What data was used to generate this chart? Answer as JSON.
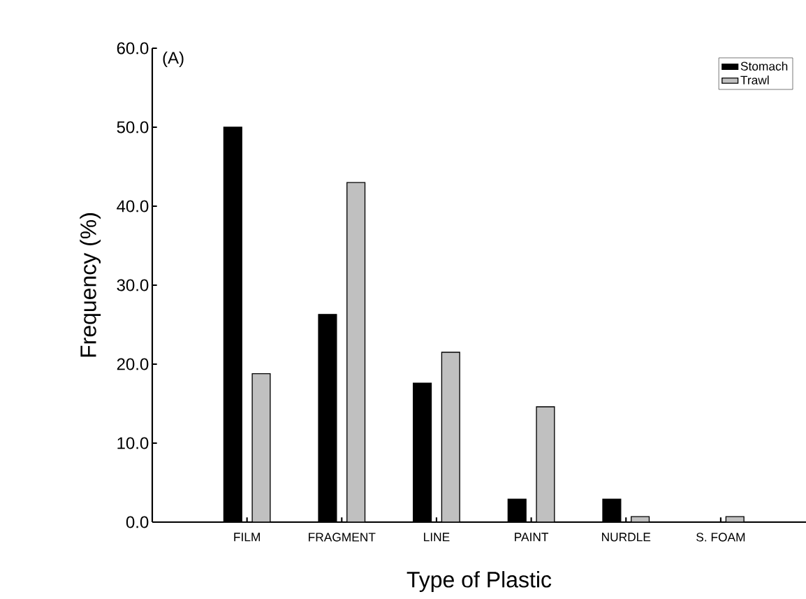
{
  "chart_data": {
    "type": "bar",
    "xlabel": "Type of Plastic",
    "ylabel": "Frequency (%)",
    "annotations": [
      "(A)"
    ],
    "categories": [
      "FILM",
      "FRAGMENT",
      "LINE",
      "PAINT",
      "NURDLE",
      "S. FOAM"
    ],
    "series": [
      {
        "name": "Stomach",
        "color": "#000000",
        "values": [
          50.0,
          26.3,
          17.6,
          2.9,
          2.9,
          0
        ]
      },
      {
        "name": "Trawl",
        "color": "#c0c0c0",
        "values": [
          18.8,
          43.0,
          21.5,
          14.6,
          0.7,
          0.7
        ]
      }
    ],
    "ylim": [
      0,
      60
    ],
    "yticks": [
      {
        "value": 0,
        "label": "0.0"
      },
      {
        "value": 10,
        "label": "10.0"
      },
      {
        "value": 20,
        "label": "20.0"
      },
      {
        "value": 30,
        "label": "30.0"
      },
      {
        "value": 40,
        "label": "40.0"
      },
      {
        "value": 50,
        "label": "50.0"
      },
      {
        "value": 60,
        "label": "60.0"
      }
    ],
    "legend": "top right",
    "grid": false
  }
}
